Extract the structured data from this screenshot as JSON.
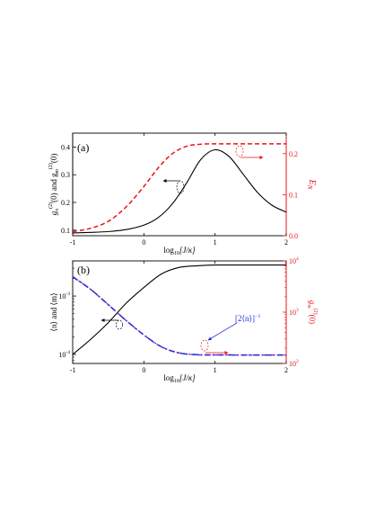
{
  "colors": {
    "black": "#000000",
    "red": "#e8141c",
    "blue": "#2233dd",
    "purple": "#b0309a"
  },
  "chart_data": [
    {
      "type": "line",
      "panel_label": "(a)",
      "xlabel_main": "log",
      "xlabel_sub": "10",
      "xlabel_rest": "[J/κ]",
      "x_ticks": [
        "-1",
        "0",
        "1",
        "2"
      ],
      "xlim": [
        -1,
        2
      ],
      "ylabel_left": "g_n^(2)(0) and g_m^(2)(0)",
      "ylabel_left_parts": [
        "g",
        "n",
        "(2)",
        "(0) and g",
        "m",
        "(2)",
        "(0)"
      ],
      "ylim_left": [
        0.08,
        0.45
      ],
      "y_left_ticks": [
        "0.1",
        "0.2",
        "0.3",
        "0.4"
      ],
      "ylabel_right": "E_N",
      "ylabel_right_parts": [
        "E",
        "N"
      ],
      "ylim_right": [
        0.0,
        0.25
      ],
      "y_right_ticks": [
        "0.0",
        "0.1",
        "0.2"
      ],
      "grid": false,
      "series": [
        {
          "axis": "left",
          "color": "#000000",
          "style": "solid",
          "x": [
            -1.0,
            -0.75,
            -0.5,
            -0.25,
            0.0,
            0.2,
            0.4,
            0.6,
            0.8,
            1.0,
            1.2,
            1.4,
            1.6,
            1.8,
            2.0
          ],
          "values": [
            0.09,
            0.092,
            0.095,
            0.102,
            0.118,
            0.145,
            0.195,
            0.27,
            0.355,
            0.39,
            0.365,
            0.3,
            0.235,
            0.19,
            0.165
          ]
        },
        {
          "axis": "right",
          "color": "#e8141c",
          "style": "dashed",
          "x": [
            -1.0,
            -0.75,
            -0.5,
            -0.25,
            0.0,
            0.2,
            0.4,
            0.6,
            0.8,
            1.0,
            1.2,
            1.4,
            1.6,
            1.8,
            2.0
          ],
          "values": [
            0.01,
            0.018,
            0.035,
            0.07,
            0.12,
            0.165,
            0.2,
            0.218,
            0.223,
            0.224,
            0.224,
            0.224,
            0.224,
            0.224,
            0.224
          ]
        }
      ]
    },
    {
      "type": "line",
      "panel_label": "(b)",
      "xlabel_main": "log",
      "xlabel_sub": "10",
      "xlabel_rest": "[J/κ]",
      "x_ticks": [
        "-1",
        "0",
        "1",
        "2"
      ],
      "xlim": [
        -1,
        2
      ],
      "ylabel_left": "⟨n⟩ and ⟨m⟩",
      "y_left_scale": "log",
      "ylim_left": [
        7e-05,
        0.004
      ],
      "y_left_ticks": [
        {
          "value": 0.0001,
          "base": "10",
          "exp": "-4"
        },
        {
          "value": 0.001,
          "base": "10",
          "exp": "-3"
        }
      ],
      "ylabel_right": "g_m^(2)(0)",
      "ylabel_right_parts": [
        "g",
        "m",
        "(2)",
        "(0)"
      ],
      "y_right_scale": "log",
      "ylim_right": [
        100,
        10000
      ],
      "y_right_ticks": [
        {
          "value": 100,
          "base": "10",
          "exp": "2"
        },
        {
          "value": 1000,
          "base": "10",
          "exp": "3"
        },
        {
          "value": 10000,
          "base": "10",
          "exp": "4"
        }
      ],
      "annotation": "[2⟨n⟩]",
      "annotation_exp": "−1",
      "grid": false,
      "series": [
        {
          "axis": "left",
          "color": "#000000",
          "style": "solid",
          "x": [
            -1.0,
            -0.75,
            -0.5,
            -0.25,
            0.0,
            0.25,
            0.5,
            0.75,
            1.0,
            1.5,
            2.0
          ],
          "values": [
            0.0001,
            0.00018,
            0.00035,
            0.00075,
            0.0014,
            0.0024,
            0.0031,
            0.0033,
            0.0034,
            0.0034,
            0.0034
          ]
        },
        {
          "axis": "right",
          "color": "#b0309a",
          "style": "dashed",
          "x": [
            -1.0,
            -0.75,
            -0.5,
            -0.25,
            0.0,
            0.25,
            0.5,
            0.75,
            1.0,
            1.5,
            2.0
          ],
          "values": [
            4900,
            2800,
            1400,
            690,
            360,
            210,
            160,
            148,
            147,
            146,
            146
          ]
        },
        {
          "axis": "right",
          "color": "#2233dd",
          "style": "dashdot",
          "x": [
            -1.0,
            -0.75,
            -0.5,
            -0.25,
            0.0,
            0.25,
            0.5,
            0.75,
            1.0,
            1.5,
            2.0
          ],
          "values": [
            4900,
            2800,
            1400,
            690,
            360,
            210,
            160,
            148,
            147,
            146,
            146
          ]
        }
      ]
    }
  ]
}
